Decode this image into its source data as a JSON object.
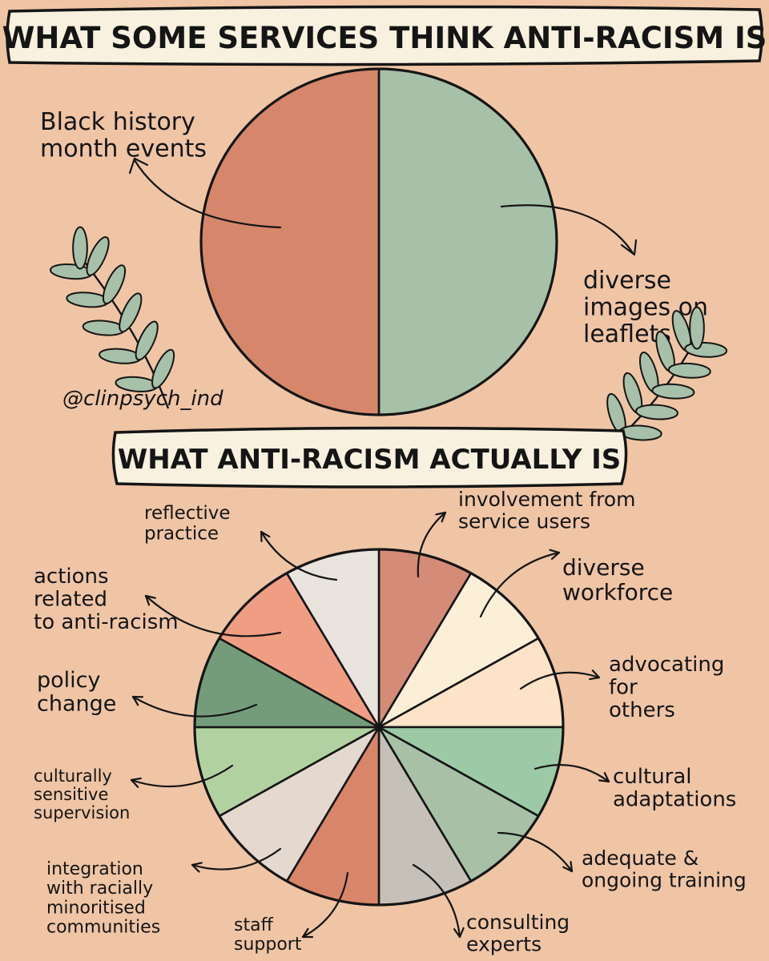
{
  "handle": "@clinpsych_ind",
  "colors": {
    "background": "#efc5a6",
    "banner": "#f8f1df",
    "outline": "#151515",
    "leaf": "#a7c0a9"
  },
  "top_banner": "WHAT SOME SERVICES THINK ANTI-RACISM IS",
  "bottom_banner": "WHAT ANTI-RACISM ACTUALLY IS",
  "chart_data": [
    {
      "type": "pie",
      "title": "WHAT SOME SERVICES THINK ANTI-RACISM IS",
      "slices": [
        {
          "label": "Black history month events",
          "lines": [
            "Black history",
            "month events"
          ],
          "value": 50,
          "color": "#a7c0a8"
        },
        {
          "label": "diverse images on leaflets",
          "lines": [
            "diverse",
            "images on",
            "leaflets"
          ],
          "value": 50,
          "color": "#d6866b"
        }
      ]
    },
    {
      "type": "pie",
      "title": "WHAT ANTI-RACISM ACTUALLY IS",
      "slices": [
        {
          "label": "involvement from service users",
          "lines": [
            "involvement from",
            "service users"
          ],
          "value": 1,
          "color": "#d48b77"
        },
        {
          "label": "diverse workforce",
          "lines": [
            "diverse",
            "workforce"
          ],
          "value": 1,
          "color": "#fcefd8"
        },
        {
          "label": "advocating for others",
          "lines": [
            "advocating",
            "for",
            "others"
          ],
          "value": 1,
          "color": "#fde3c8"
        },
        {
          "label": "cultural adaptations",
          "lines": [
            "cultural",
            "adaptations"
          ],
          "value": 1,
          "color": "#9ccaa6"
        },
        {
          "label": "adequate & ongoing training",
          "lines": [
            "adequate &",
            "ongoing training"
          ],
          "value": 1,
          "color": "#a8c0a6"
        },
        {
          "label": "consulting experts",
          "lines": [
            "consulting",
            "experts"
          ],
          "value": 1,
          "color": "#c5c1b9"
        },
        {
          "label": "staff support",
          "lines": [
            "staff",
            "support"
          ],
          "value": 1,
          "color": "#d8856a"
        },
        {
          "label": "integration with racially minoritised communities",
          "lines": [
            "integration",
            "with racially",
            "minoritised",
            "communities"
          ],
          "value": 1,
          "color": "#e4d8cf"
        },
        {
          "label": "culturally sensitive supervision",
          "lines": [
            "culturally",
            "sensitive",
            "supervision"
          ],
          "value": 1,
          "color": "#b2d1a0"
        },
        {
          "label": "policy change",
          "lines": [
            "policy",
            "change"
          ],
          "value": 1,
          "color": "#749c7b"
        },
        {
          "label": "actions related to anti-racism",
          "lines": [
            "actions",
            "related",
            "to anti-racism"
          ],
          "value": 1,
          "color": "#f09e83"
        },
        {
          "label": "reflective practice",
          "lines": [
            "reflective",
            "practice"
          ],
          "value": 1,
          "color": "#e9e3de"
        }
      ]
    }
  ]
}
